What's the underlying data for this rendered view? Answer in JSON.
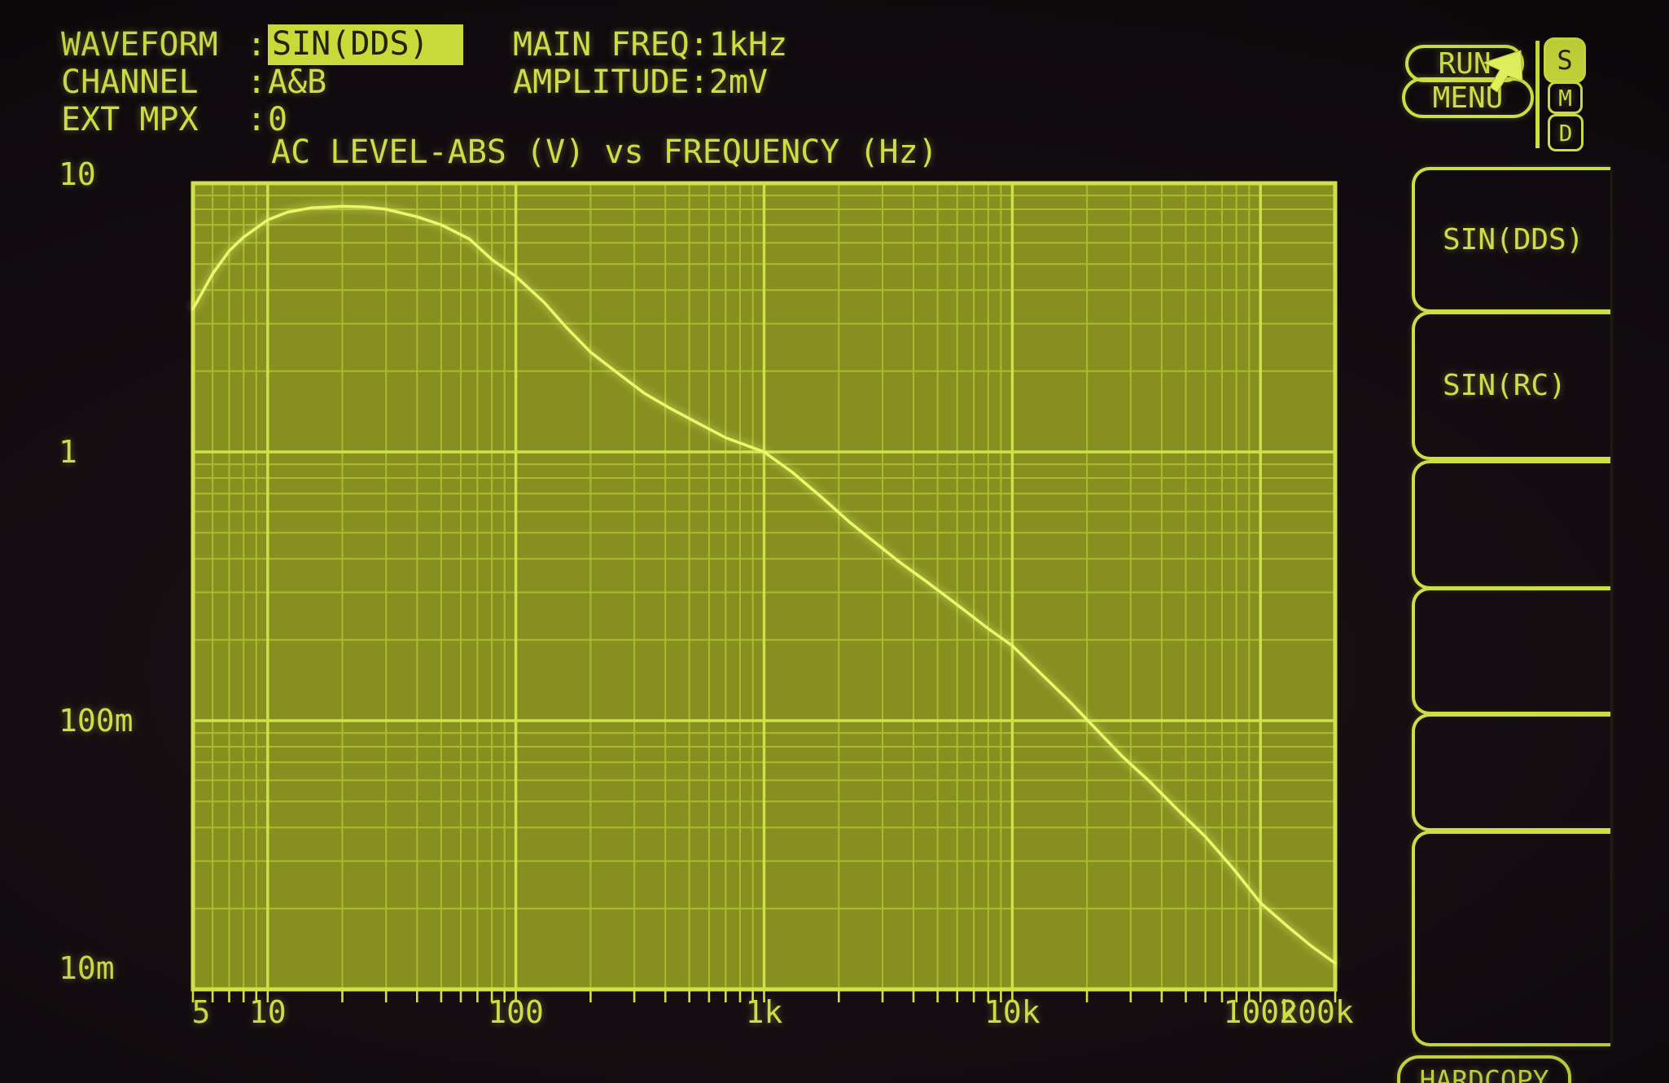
{
  "colors": {
    "phosphor": "#cdde45",
    "phosphor_bright": "#e6f55e",
    "plot_bg": "#87901f",
    "grid_minor": "#b8cc37",
    "grid_major": "#cfe14a",
    "curve": "#eaf768",
    "highlight_bg": "#c8d93a",
    "highlight_text": "#20220a",
    "screen_bg": "#0e0a0d"
  },
  "header": {
    "colon": ":",
    "fields": [
      {
        "label": "WAVEFORM",
        "value": "SIN(DDS)",
        "highlighted": true
      },
      {
        "label": "CHANNEL",
        "value": "A&B",
        "highlighted": false
      },
      {
        "label": "EXT MPX",
        "value": "0",
        "highlighted": false
      }
    ],
    "params": [
      {
        "label": "MAIN FREQ",
        "value": "1kHz"
      },
      {
        "label": "AMPLITUDE",
        "value": "2mV"
      }
    ]
  },
  "side_panel": {
    "run_label": "RUN",
    "menu_label": "MENU",
    "mode_badges": [
      {
        "label": "S",
        "active": true
      },
      {
        "label": "M",
        "active": false
      },
      {
        "label": "D",
        "active": false
      }
    ],
    "softkeys": [
      {
        "label": "SIN(DDS)"
      },
      {
        "label": "SIN(RC)"
      },
      {
        "label": ""
      },
      {
        "label": ""
      },
      {
        "label": ""
      },
      {
        "label": ""
      }
    ],
    "hardcopy_label": "HARDCOPY"
  },
  "chart_data": {
    "type": "line",
    "title": "AC LEVEL-ABS (V) vs FREQUENCY (Hz)",
    "xlabel": "FREQUENCY (Hz)",
    "ylabel": "AC LEVEL-ABS (V)",
    "xscale": "log",
    "yscale": "log",
    "xlim": [
      5,
      200000
    ],
    "ylim": [
      0.01,
      10
    ],
    "grid": true,
    "legend_position": "none",
    "x_ticks": [
      {
        "value": 5,
        "label": "5"
      },
      {
        "value": 10,
        "label": "10"
      },
      {
        "value": 100,
        "label": "100"
      },
      {
        "value": 1000,
        "label": "1k"
      },
      {
        "value": 10000,
        "label": "10k"
      },
      {
        "value": 100000,
        "label": "100k"
      },
      {
        "value": 200000,
        "label": "200k"
      }
    ],
    "y_ticks": [
      {
        "value": 10,
        "label": "10"
      },
      {
        "value": 1,
        "label": "1"
      },
      {
        "value": 0.1,
        "label": "100m"
      },
      {
        "value": 0.01,
        "label": "10m"
      }
    ],
    "series": [
      {
        "name": "AC LEVEL-ABS (V)",
        "x": [
          5,
          6,
          7,
          8,
          10,
          12,
          15,
          20,
          25,
          30,
          40,
          50,
          65,
          80,
          100,
          130,
          160,
          200,
          260,
          330,
          420,
          550,
          700,
          1000,
          1300,
          1700,
          2200,
          2800,
          3500,
          4500,
          6000,
          8000,
          10000,
          13000,
          17000,
          22000,
          28000,
          36000,
          47000,
          60000,
          78000,
          100000,
          130000,
          160000,
          200000
        ],
        "y": [
          3.4,
          4.6,
          5.6,
          6.3,
          7.3,
          7.8,
          8.1,
          8.2,
          8.15,
          8.0,
          7.5,
          7.0,
          6.2,
          5.2,
          4.5,
          3.6,
          2.9,
          2.35,
          1.95,
          1.65,
          1.45,
          1.27,
          1.13,
          1.0,
          0.84,
          0.68,
          0.55,
          0.46,
          0.39,
          0.33,
          0.27,
          0.22,
          0.19,
          0.15,
          0.118,
          0.092,
          0.073,
          0.059,
          0.046,
          0.037,
          0.028,
          0.021,
          0.017,
          0.0145,
          0.0125
        ]
      }
    ]
  }
}
